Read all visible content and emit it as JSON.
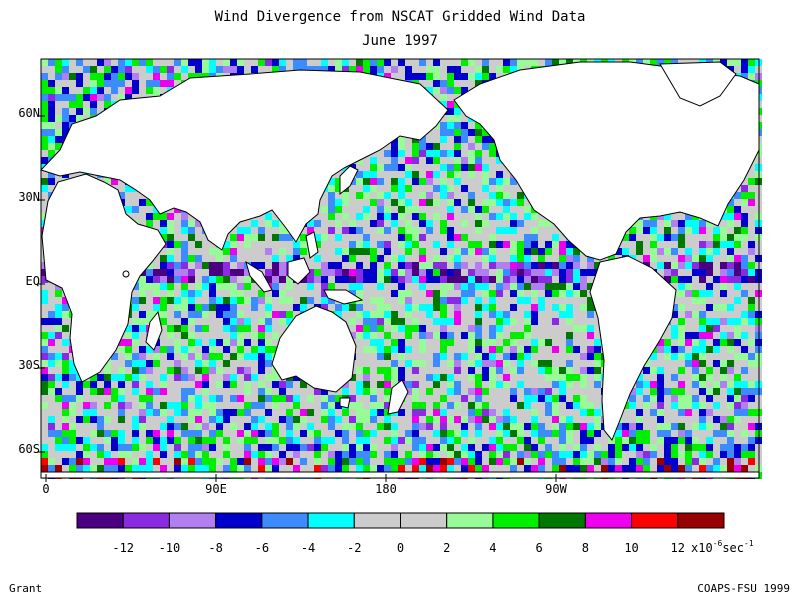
{
  "title": "Wind Divergence from NSCAT Gridded Wind Data",
  "subtitle": "June 1997",
  "latitude_labels": [
    {
      "label": "60N",
      "lat": 60
    },
    {
      "label": "30N",
      "lat": 30
    },
    {
      "label": "EQ",
      "lat": 0
    },
    {
      "label": "30S",
      "lat": -30
    },
    {
      "label": "60S",
      "lat": -60
    }
  ],
  "longitude_labels": [
    {
      "label": "0",
      "lon": 0
    },
    {
      "label": "90E",
      "lon": 90
    },
    {
      "label": "180",
      "lon": 180
    },
    {
      "label": "90W",
      "lon": 270
    }
  ],
  "colorbar": {
    "colors": [
      "#4b0082",
      "#8a2be2",
      "#b17ff0",
      "#0000cd",
      "#3c8cff",
      "#00ffff",
      "#cccccc",
      "#cccccc",
      "#98fb98",
      "#00ee00",
      "#007700",
      "#ee00ee",
      "#ff0000",
      "#990000"
    ],
    "tick_labels": [
      "-12",
      "-10",
      "-8",
      "-6",
      "-4",
      "-2",
      "0",
      "2",
      "4",
      "6",
      "8",
      "10",
      "12"
    ],
    "units_prefix": "x10",
    "units_exponent": "-6",
    "units_suffix": "sec",
    "units_suffix_exponent": "-1"
  },
  "footer": {
    "left": "Grant",
    "right": "COAPS-FSU 1999"
  }
}
